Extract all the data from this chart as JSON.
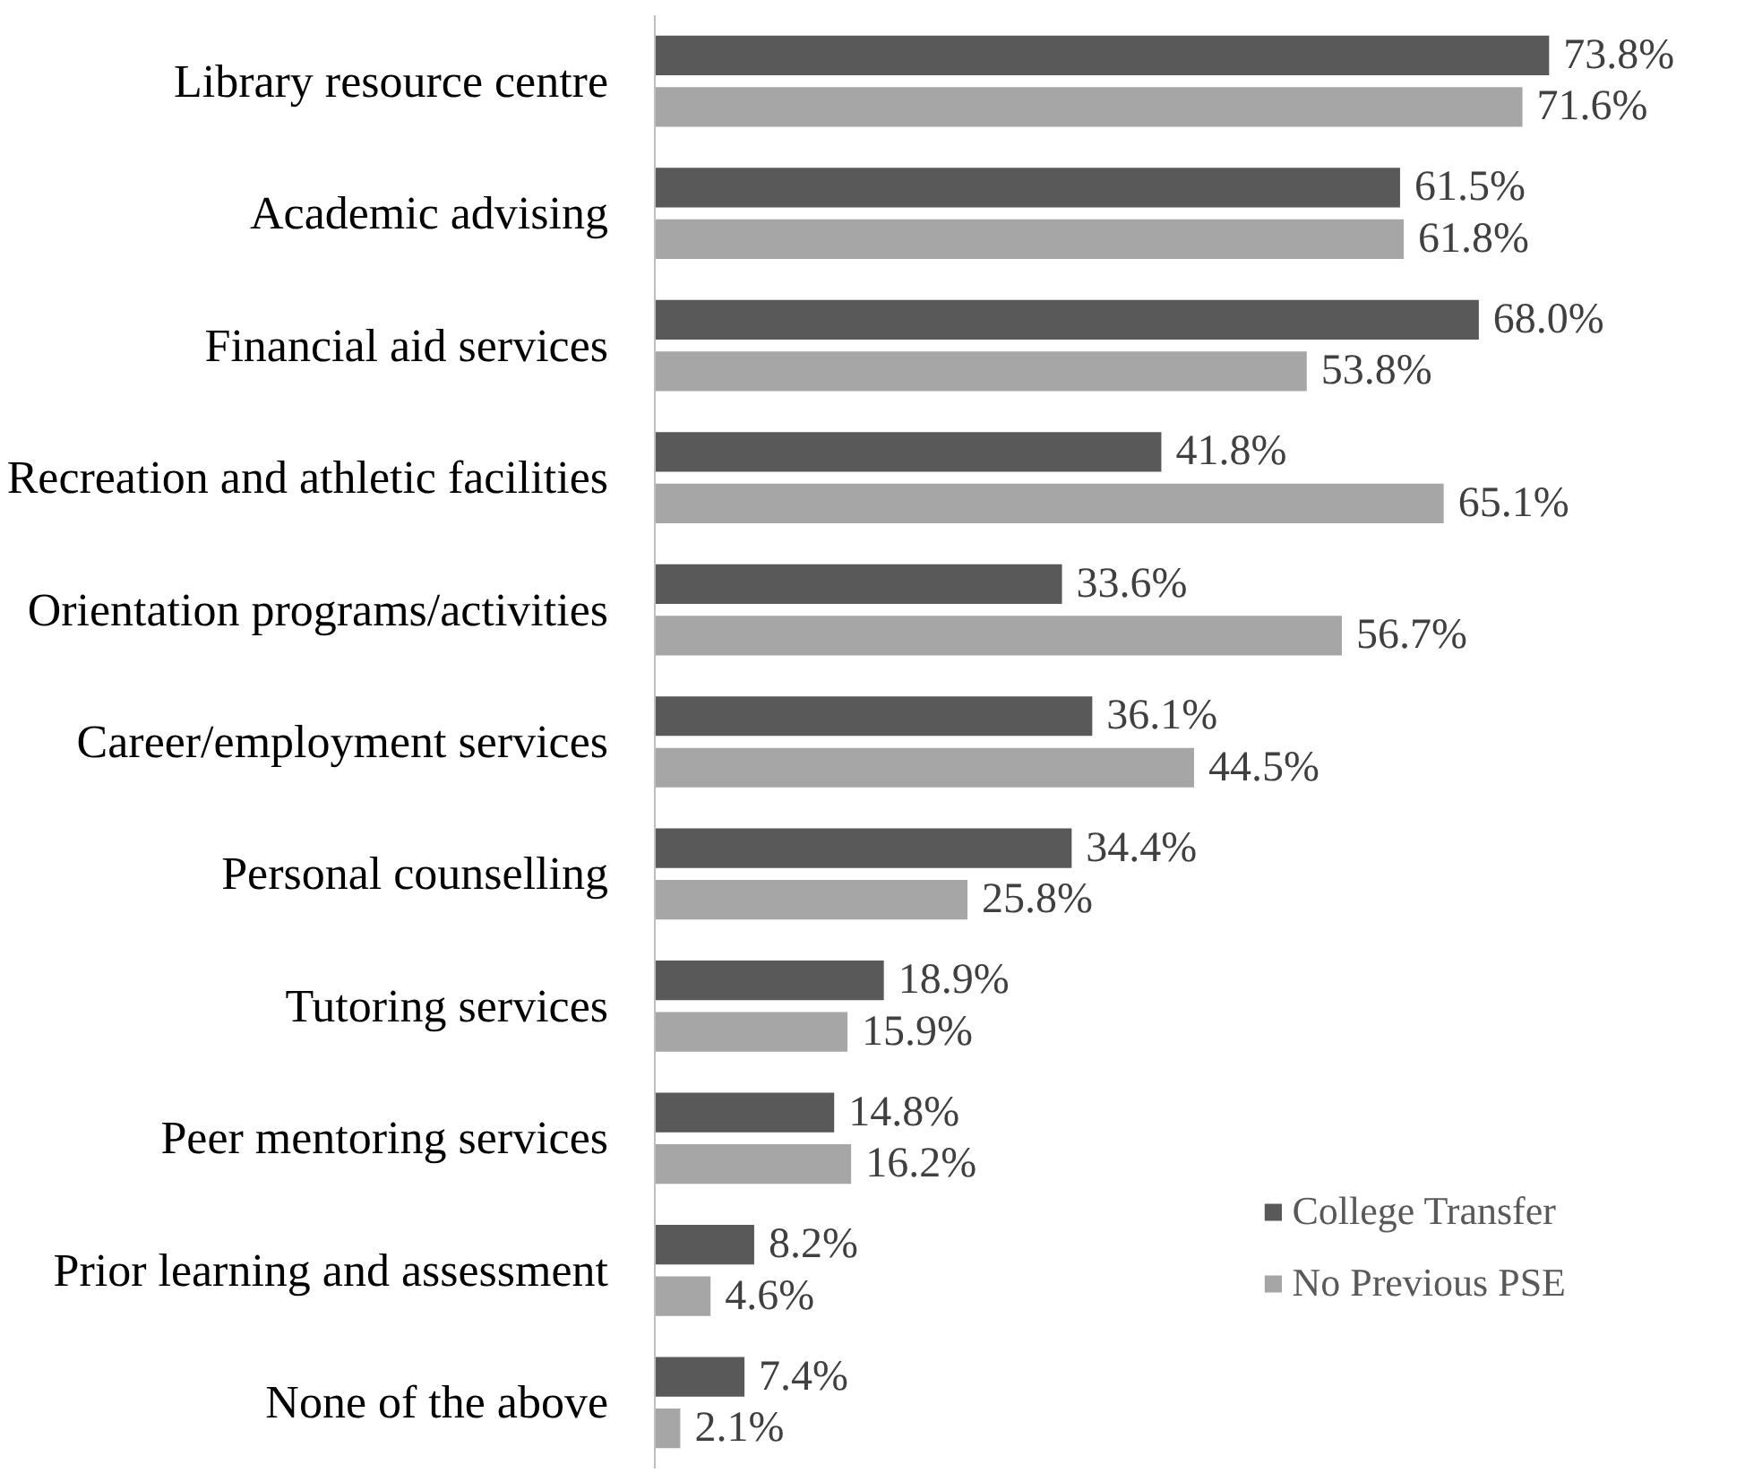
{
  "chart_data": {
    "type": "bar",
    "orientation": "horizontal",
    "legend": "bottom right",
    "grid": false,
    "categories": [
      "Library resource centre",
      "Academic advising",
      "Financial aid services",
      "Recreation and athletic facilities",
      "Orientation programs/activities",
      "Career/employment services",
      "Personal counselling",
      "Tutoring services",
      "Peer mentoring services",
      "Prior learning and assessment",
      "None of the above"
    ],
    "tick_labels": "y",
    "series": [
      {
        "name": "College Transfer",
        "color": "#595959",
        "values": [
          73.8,
          61.5,
          68.0,
          41.8,
          33.6,
          36.1,
          34.4,
          18.9,
          14.8,
          8.2,
          7.4
        ],
        "value_labels": [
          "73.8%",
          "61.5%",
          "68.0%",
          "41.8%",
          "33.6%",
          "36.1%",
          "34.4%",
          "18.9%",
          "14.8%",
          "8.2%",
          "7.4%"
        ]
      },
      {
        "name": "No Previous PSE",
        "color": "#a6a6a6",
        "values": [
          71.6,
          61.8,
          53.8,
          65.1,
          56.7,
          44.5,
          25.8,
          15.9,
          16.2,
          4.6,
          2.1
        ],
        "value_labels": [
          "71.6%",
          "61.8%",
          "53.8%",
          "65.1%",
          "56.7%",
          "44.5%",
          "25.8%",
          "15.9%",
          "16.2%",
          "4.6%",
          "2.1%"
        ]
      }
    ]
  }
}
